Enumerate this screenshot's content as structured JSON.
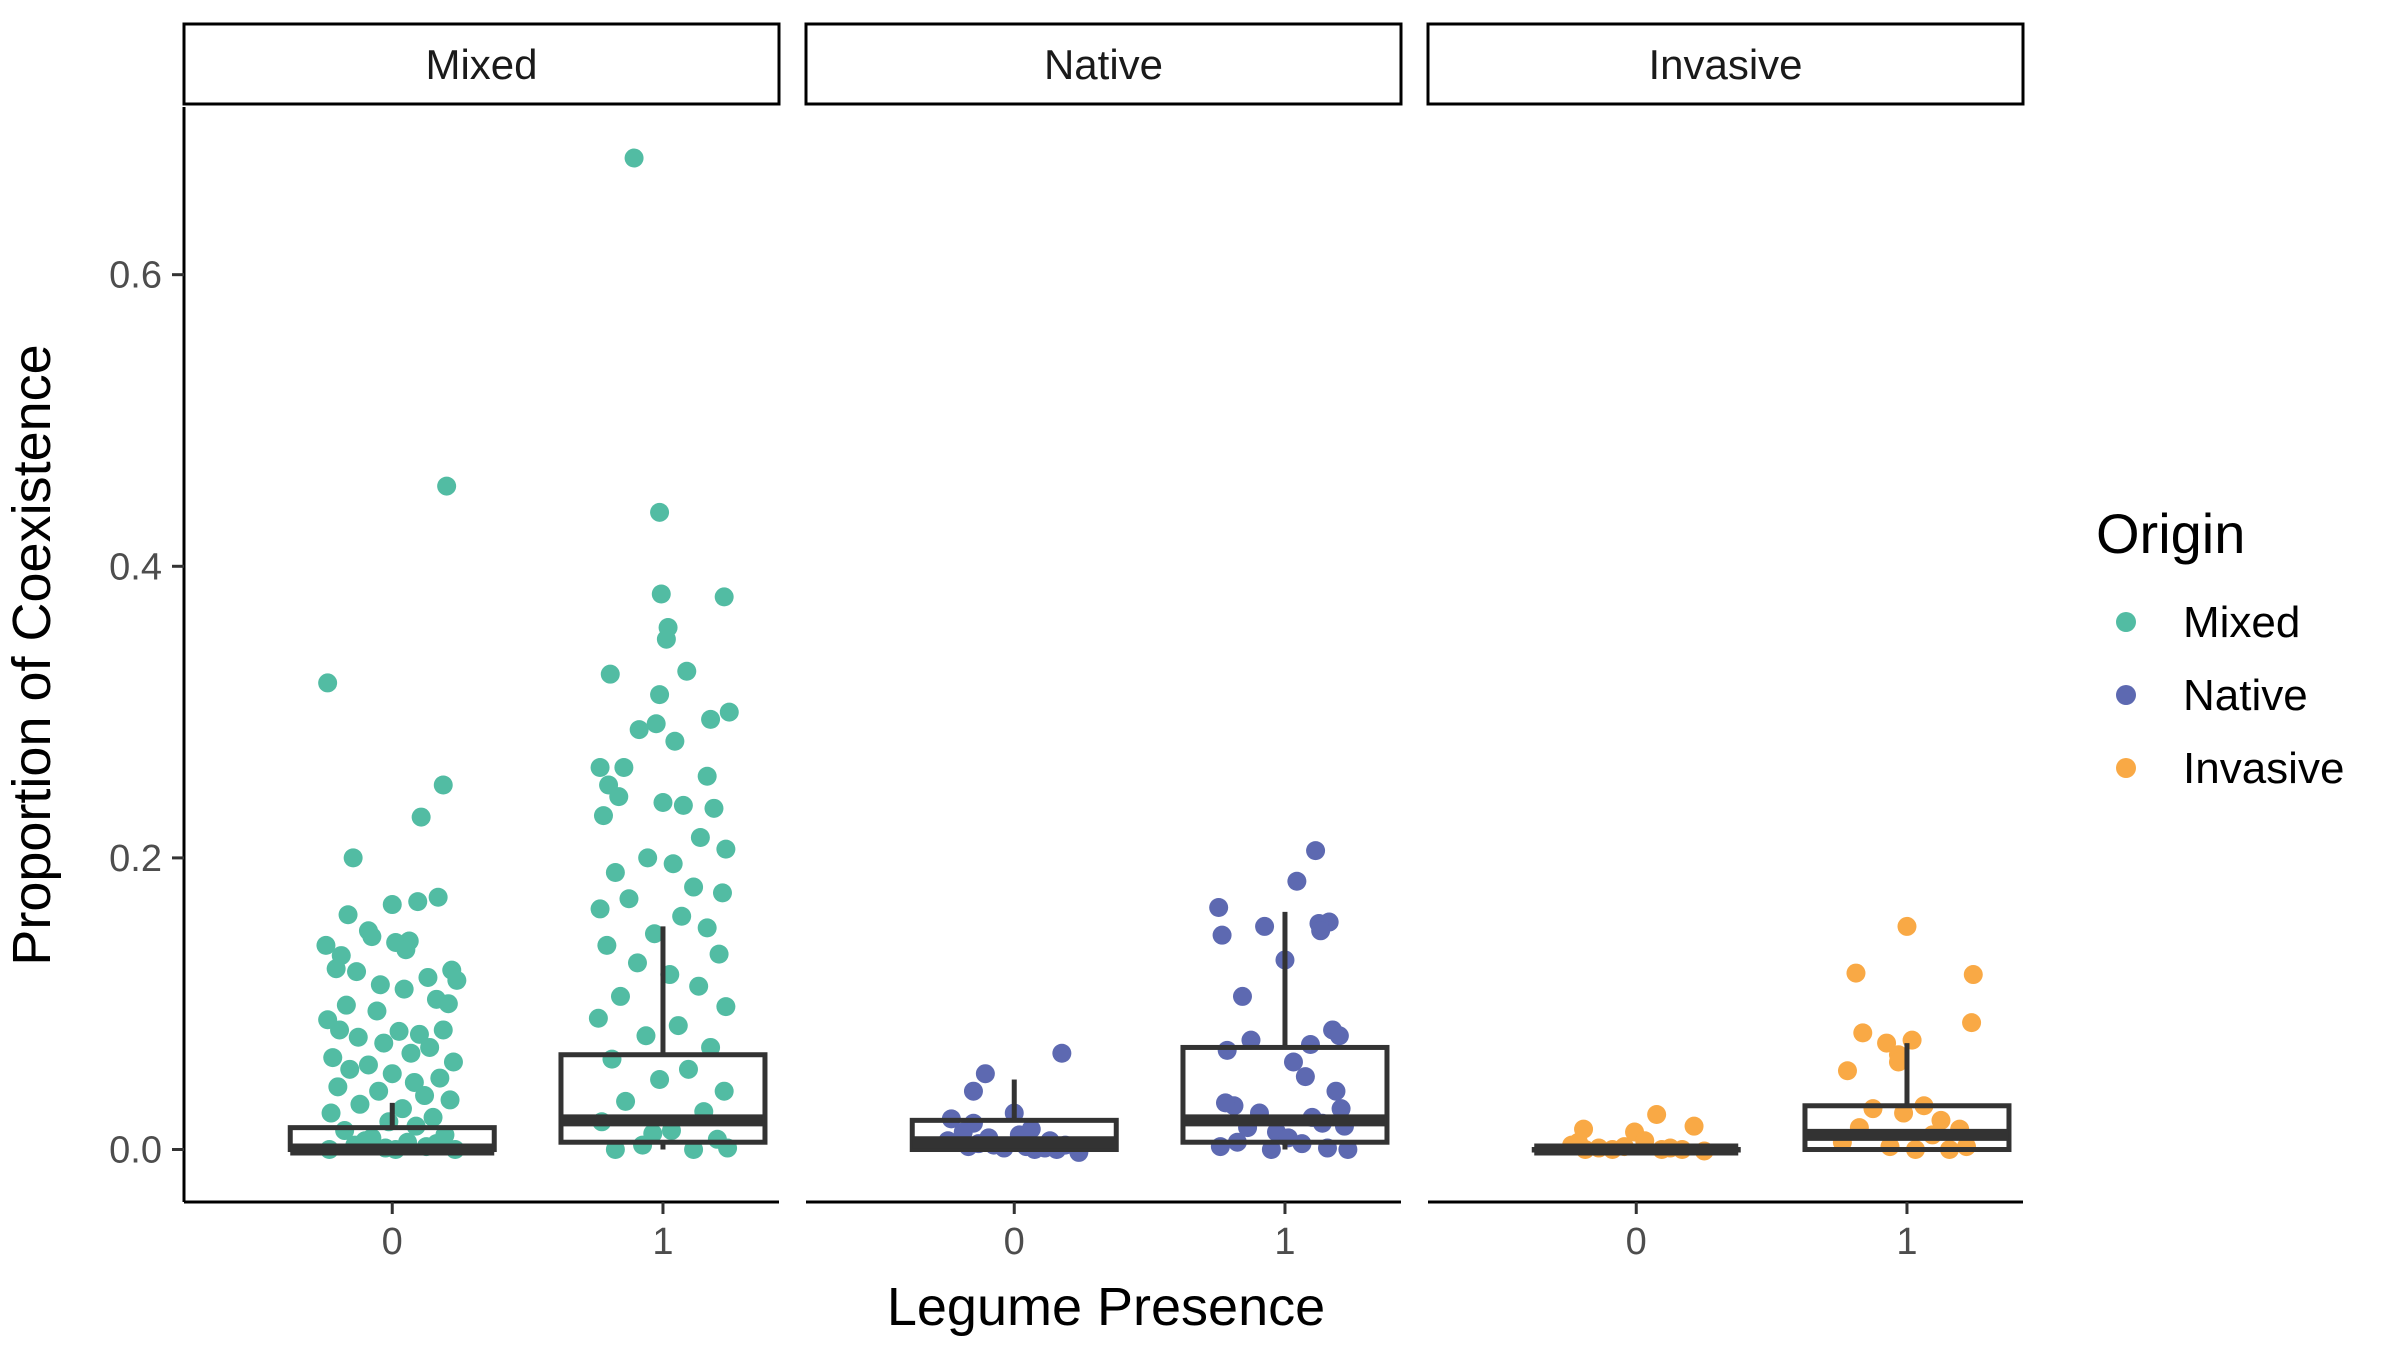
{
  "chart_data": {
    "type": "scatter",
    "subtype": "faceted jittered points with boxplots",
    "xlabel": "Legume Presence",
    "ylabel": "Proportion of Coexistence",
    "ylim": [
      -0.036,
      0.715
    ],
    "yticks": [
      0.0,
      0.2,
      0.4,
      0.6
    ],
    "ytick_labels": [
      "0.0",
      "0.2",
      "0.4",
      "0.6"
    ],
    "categories": [
      "0",
      "1"
    ],
    "legend": {
      "title": "Origin",
      "position": "right",
      "entries": [
        {
          "label": "Mixed",
          "color": "#52BCA3"
        },
        {
          "label": "Native",
          "color": "#5D69B1"
        },
        {
          "label": "Invasive",
          "color": "#F9A945"
        }
      ]
    },
    "grid": false,
    "box_color": "#333333",
    "facets": [
      {
        "label": "Mixed",
        "color": "#52BCA3",
        "groups": [
          {
            "x": "0",
            "box": {
              "q1": 0.0,
              "median": 0.0,
              "q3": 0.015,
              "whisker_low": 0.0,
              "whisker_high": 0.032
            },
            "points": [
              [
                -0.38,
                0.32
              ],
              [
                0.32,
                0.455
              ],
              [
                0.3,
                0.25
              ],
              [
                -0.23,
                0.2
              ],
              [
                0.17,
                0.228
              ],
              [
                -0.26,
                0.161
              ],
              [
                0.0,
                0.168
              ],
              [
                0.15,
                0.17
              ],
              [
                0.27,
                0.173
              ],
              [
                -0.14,
                0.15
              ],
              [
                -0.12,
                0.146
              ],
              [
                0.02,
                0.142
              ],
              [
                0.1,
                0.143
              ],
              [
                0.08,
                0.137
              ],
              [
                -0.39,
                0.14
              ],
              [
                -0.3,
                0.133
              ],
              [
                -0.33,
                0.124
              ],
              [
                -0.21,
                0.122
              ],
              [
                0.35,
                0.123
              ],
              [
                0.38,
                0.116
              ],
              [
                0.21,
                0.118
              ],
              [
                -0.07,
                0.113
              ],
              [
                0.07,
                0.11
              ],
              [
                0.26,
                0.103
              ],
              [
                0.33,
                0.1
              ],
              [
                -0.27,
                0.099
              ],
              [
                -0.09,
                0.095
              ],
              [
                -0.38,
                0.089
              ],
              [
                -0.31,
                0.082
              ],
              [
                0.04,
                0.081
              ],
              [
                0.16,
                0.079
              ],
              [
                0.3,
                0.082
              ],
              [
                -0.2,
                0.077
              ],
              [
                -0.05,
                0.073
              ],
              [
                0.22,
                0.07
              ],
              [
                0.11,
                0.066
              ],
              [
                -0.35,
                0.063
              ],
              [
                0.36,
                0.06
              ],
              [
                -0.14,
                0.058
              ],
              [
                -0.25,
                0.055
              ],
              [
                0.0,
                0.052
              ],
              [
                0.28,
                0.049
              ],
              [
                0.13,
                0.046
              ],
              [
                -0.32,
                0.043
              ],
              [
                -0.08,
                0.04
              ],
              [
                0.19,
                0.037
              ],
              [
                0.34,
                0.034
              ],
              [
                -0.19,
                0.031
              ],
              [
                0.06,
                0.028
              ],
              [
                -0.36,
                0.025
              ],
              [
                0.24,
                0.022
              ],
              [
                -0.02,
                0.019
              ],
              [
                0.14,
                0.016
              ],
              [
                -0.28,
                0.013
              ],
              [
                0.31,
                0.01
              ],
              [
                -0.12,
                0.008
              ],
              [
                0.09,
                0.005
              ],
              [
                -0.22,
                0.003
              ],
              [
                0.2,
                0.002
              ],
              [
                -0.04,
                0.001
              ],
              [
                0.37,
                0.0
              ],
              [
                -0.37,
                0.0
              ],
              [
                0.02,
                0.0
              ],
              [
                0.26,
                0.004
              ],
              [
                -0.16,
                0.006
              ]
            ]
          },
          {
            "x": "1",
            "box": {
              "q1": 0.005,
              "median": 0.02,
              "q3": 0.065,
              "whisker_low": 0.0,
              "whisker_high": 0.153
            },
            "points": [
              [
                -0.17,
                0.68
              ],
              [
                -0.02,
                0.437
              ],
              [
                0.36,
                0.379
              ],
              [
                -0.01,
                0.381
              ],
              [
                0.03,
                0.358
              ],
              [
                0.02,
                0.35
              ],
              [
                0.14,
                0.328
              ],
              [
                -0.31,
                0.326
              ],
              [
                -0.02,
                0.312
              ],
              [
                0.39,
                0.3
              ],
              [
                0.28,
                0.295
              ],
              [
                -0.04,
                0.292
              ],
              [
                -0.14,
                0.288
              ],
              [
                0.07,
                0.28
              ],
              [
                -0.37,
                0.262
              ],
              [
                -0.23,
                0.262
              ],
              [
                0.26,
                0.256
              ],
              [
                -0.32,
                0.25
              ],
              [
                -0.26,
                0.242
              ],
              [
                0.0,
                0.238
              ],
              [
                0.12,
                0.236
              ],
              [
                0.3,
                0.234
              ],
              [
                -0.35,
                0.229
              ],
              [
                0.22,
                0.214
              ],
              [
                0.37,
                0.206
              ],
              [
                -0.09,
                0.2
              ],
              [
                0.06,
                0.196
              ],
              [
                -0.28,
                0.19
              ],
              [
                0.18,
                0.18
              ],
              [
                0.35,
                0.176
              ],
              [
                -0.2,
                0.172
              ],
              [
                -0.37,
                0.165
              ],
              [
                0.11,
                0.16
              ],
              [
                0.26,
                0.152
              ],
              [
                -0.05,
                0.148
              ],
              [
                -0.33,
                0.14
              ],
              [
                0.33,
                0.134
              ],
              [
                -0.15,
                0.128
              ],
              [
                0.04,
                0.12
              ],
              [
                0.21,
                0.112
              ],
              [
                -0.25,
                0.105
              ],
              [
                0.37,
                0.098
              ],
              [
                -0.38,
                0.09
              ],
              [
                0.09,
                0.085
              ],
              [
                -0.1,
                0.078
              ],
              [
                0.28,
                0.07
              ],
              [
                -0.3,
                0.062
              ],
              [
                0.15,
                0.055
              ],
              [
                -0.02,
                0.048
              ],
              [
                0.36,
                0.04
              ],
              [
                -0.22,
                0.033
              ],
              [
                0.24,
                0.026
              ],
              [
                -0.36,
                0.019
              ],
              [
                0.05,
                0.013
              ],
              [
                0.32,
                0.007
              ],
              [
                -0.12,
                0.003
              ],
              [
                0.18,
                0.0
              ],
              [
                -0.28,
                0.0
              ],
              [
                0.38,
                0.001
              ],
              [
                -0.06,
                0.011
              ]
            ]
          }
        ]
      },
      {
        "label": "Native",
        "color": "#5D69B1",
        "groups": [
          {
            "x": "0",
            "box": {
              "q1": 0.0,
              "median": 0.005,
              "q3": 0.02,
              "whisker_low": 0.0,
              "whisker_high": 0.048
            },
            "points": [
              [
                0.28,
                0.066
              ],
              [
                -0.17,
                0.052
              ],
              [
                -0.24,
                0.04
              ],
              [
                -0.37,
                0.021
              ],
              [
                -0.24,
                0.018
              ],
              [
                0.0,
                0.025
              ],
              [
                -0.39,
                0.006
              ],
              [
                -0.33,
                0.005
              ],
              [
                -0.27,
                0.002
              ],
              [
                -0.21,
                0.004
              ],
              [
                -0.12,
                0.003
              ],
              [
                -0.06,
                0.001
              ],
              [
                0.03,
                0.01
              ],
              [
                0.07,
                0.002
              ],
              [
                0.12,
                0.0
              ],
              [
                0.18,
                0.001
              ],
              [
                0.25,
                0.0
              ],
              [
                0.3,
                0.003
              ],
              [
                0.38,
                -0.002
              ],
              [
                -0.15,
                0.008
              ],
              [
                0.1,
                0.014
              ],
              [
                -0.3,
                0.012
              ],
              [
                0.21,
                0.006
              ]
            ]
          },
          {
            "x": "1",
            "box": {
              "q1": 0.005,
              "median": 0.02,
              "q3": 0.07,
              "whisker_low": 0.0,
              "whisker_high": 0.163
            },
            "points": [
              [
                0.18,
                0.205
              ],
              [
                0.07,
                0.184
              ],
              [
                -0.39,
                0.166
              ],
              [
                0.26,
                0.156
              ],
              [
                0.2,
                0.155
              ],
              [
                -0.12,
                0.153
              ],
              [
                0.21,
                0.15
              ],
              [
                -0.37,
                0.147
              ],
              [
                0.0,
                0.13
              ],
              [
                -0.25,
                0.105
              ],
              [
                0.28,
                0.082
              ],
              [
                0.32,
                0.078
              ],
              [
                -0.2,
                0.075
              ],
              [
                0.15,
                0.072
              ],
              [
                -0.34,
                0.068
              ],
              [
                0.05,
                0.06
              ],
              [
                0.12,
                0.05
              ],
              [
                0.3,
                0.04
              ],
              [
                -0.3,
                0.03
              ],
              [
                -0.15,
                0.025
              ],
              [
                0.22,
                0.018
              ],
              [
                -0.05,
                0.012
              ],
              [
                0.35,
                0.016
              ],
              [
                0.37,
                0.0
              ],
              [
                -0.38,
                0.002
              ],
              [
                -0.28,
                0.005
              ],
              [
                -0.08,
                0.0
              ],
              [
                0.1,
                0.004
              ],
              [
                0.25,
                0.001
              ],
              [
                0.16,
                0.022
              ],
              [
                -0.22,
                0.015
              ],
              [
                0.02,
                0.008
              ],
              [
                -0.35,
                0.032
              ],
              [
                0.33,
                0.028
              ]
            ]
          }
        ]
      },
      {
        "label": "Invasive",
        "color": "#F9A945",
        "groups": [
          {
            "x": "0",
            "box": {
              "q1": 0.0,
              "median": 0.0,
              "q3": 0.0,
              "whisker_low": 0.0,
              "whisker_high": 0.0
            },
            "points": [
              [
                0.12,
                0.024
              ],
              [
                -0.31,
                0.014
              ],
              [
                0.34,
                0.016
              ],
              [
                -0.01,
                0.012
              ],
              [
                0.05,
                0.006
              ],
              [
                -0.38,
                0.003
              ],
              [
                -0.3,
                0.0
              ],
              [
                -0.22,
                0.001
              ],
              [
                -0.14,
                0.0
              ],
              [
                -0.07,
                0.002
              ],
              [
                0.2,
                0.001
              ],
              [
                0.27,
                0.0
              ],
              [
                0.4,
                -0.001
              ],
              [
                -0.34,
                0.005
              ],
              [
                0.15,
                0.0
              ]
            ]
          },
          {
            "x": "1",
            "box": {
              "q1": 0.0,
              "median": 0.01,
              "q3": 0.03,
              "whisker_low": 0.0,
              "whisker_high": 0.073
            },
            "points": [
              [
                0.0,
                0.153
              ],
              [
                -0.3,
                0.121
              ],
              [
                0.39,
                0.12
              ],
              [
                0.38,
                0.087
              ],
              [
                -0.26,
                0.08
              ],
              [
                0.03,
                0.075
              ],
              [
                -0.12,
                0.073
              ],
              [
                -0.05,
                0.065
              ],
              [
                -0.05,
                0.06
              ],
              [
                -0.35,
                0.054
              ],
              [
                0.1,
                0.03
              ],
              [
                -0.2,
                0.028
              ],
              [
                0.2,
                0.02
              ],
              [
                0.31,
                0.014
              ],
              [
                -0.38,
                0.005
              ],
              [
                -0.1,
                0.002
              ],
              [
                0.05,
                0.0
              ],
              [
                0.25,
                0.0
              ],
              [
                0.35,
                0.002
              ],
              [
                -0.28,
                0.015
              ],
              [
                0.15,
                0.01
              ],
              [
                -0.02,
                0.025
              ]
            ]
          }
        ]
      }
    ]
  }
}
